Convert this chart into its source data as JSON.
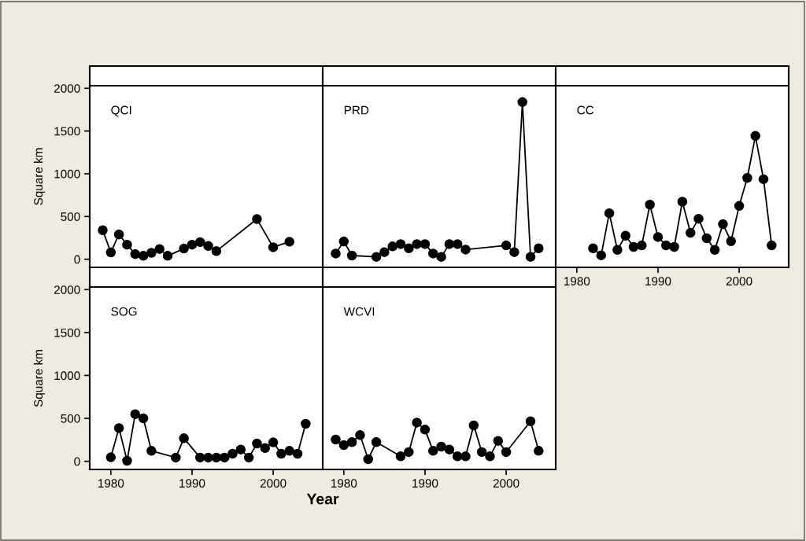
{
  "chart_data": [
    {
      "type": "line",
      "title": "QCI",
      "ylabel": "Square km",
      "xlim": [
        1977.4,
        2006.1
      ],
      "ylim": [
        -95,
        2030
      ],
      "xticks": [
        1980,
        1990,
        2000
      ],
      "yticks": [
        0,
        500,
        1000,
        1500,
        2000
      ],
      "tick_labels": "y",
      "marker": "circle",
      "line_style": "solid",
      "grid": false,
      "series": [
        {
          "color": "#000000",
          "x": [
            1979,
            1980,
            1981,
            1982,
            1983,
            1984,
            1985,
            1986,
            1987,
            1989,
            1990,
            1991,
            1992,
            1993,
            1998,
            2000,
            2002
          ],
          "values": [
            340,
            80,
            290,
            170,
            60,
            40,
            75,
            120,
            40,
            125,
            170,
            200,
            155,
            95,
            470,
            140,
            205
          ]
        }
      ]
    },
    {
      "type": "line",
      "title": "PRD",
      "xlim": [
        1977.4,
        2006.1
      ],
      "ylim": [
        -95,
        2030
      ],
      "xticks": [
        1980,
        1990,
        2000
      ],
      "yticks": [
        0,
        500,
        1000,
        1500,
        2000
      ],
      "tick_labels": false,
      "marker": "circle",
      "line_style": "solid",
      "grid": false,
      "series": [
        {
          "color": "#000000",
          "x": [
            1979,
            1980,
            1981,
            1984,
            1985,
            1986,
            1987,
            1988,
            1989,
            1990,
            1991,
            1992,
            1993,
            1994,
            1995,
            2000,
            2001,
            2002,
            2003,
            2004
          ],
          "values": [
            67,
            208,
            43,
            28,
            83,
            150,
            177,
            128,
            177,
            177,
            67,
            28,
            177,
            177,
            113,
            162,
            83,
            1838,
            28,
            128
          ]
        }
      ]
    },
    {
      "type": "line",
      "title": "CC",
      "xlim": [
        1977.4,
        2006.1
      ],
      "ylim": [
        -95,
        2030
      ],
      "xticks": [
        1980,
        1990,
        2000
      ],
      "yticks": [
        0,
        500,
        1000,
        1500,
        2000
      ],
      "tick_labels": "x",
      "marker": "circle",
      "line_style": "solid",
      "grid": false,
      "series": [
        {
          "color": "#000000",
          "x": [
            1982,
            1983,
            1984,
            1985,
            1986,
            1987,
            1988,
            1989,
            1990,
            1991,
            1992,
            1993,
            1994,
            1995,
            1996,
            1997,
            1998,
            1999,
            2000,
            2001,
            2002,
            2003,
            2004
          ],
          "values": [
            128,
            46,
            538,
            110,
            275,
            144,
            162,
            639,
            260,
            162,
            144,
            673,
            309,
            474,
            245,
            110,
            410,
            211,
            624,
            951,
            1443,
            936,
            162
          ]
        }
      ]
    },
    {
      "type": "line",
      "title": "SOG",
      "ylabel": "Square km",
      "xlabel": "Year",
      "xlim": [
        1977.4,
        2006.1
      ],
      "ylim": [
        -95,
        2030
      ],
      "xticks": [
        1980,
        1990,
        2000
      ],
      "yticks": [
        0,
        500,
        1000,
        1500,
        2000
      ],
      "marker": "circle",
      "line_style": "solid",
      "grid": false,
      "series": [
        {
          "color": "#000000",
          "x": [
            1980,
            1981,
            1982,
            1983,
            1984,
            1985,
            1988,
            1989,
            1991,
            1992,
            1993,
            1994,
            1995,
            1996,
            1997,
            1998,
            1999,
            2000,
            2001,
            2002,
            2003,
            2004
          ],
          "values": [
            46,
            387,
            6,
            549,
            500,
            122,
            43,
            268,
            43,
            43,
            43,
            43,
            88,
            137,
            43,
            207,
            155,
            220,
            88,
            122,
            88,
            436
          ]
        }
      ]
    },
    {
      "type": "line",
      "title": "WCVI",
      "xlim": [
        1977.4,
        2006.1
      ],
      "ylim": [
        -95,
        2030
      ],
      "xticks": [
        1980,
        1990,
        2000
      ],
      "yticks": [
        0,
        500,
        1000,
        1500,
        2000
      ],
      "tick_labels": "x",
      "marker": "circle",
      "line_style": "solid",
      "grid": false,
      "series": [
        {
          "color": "#000000",
          "x": [
            1979,
            1980,
            1981,
            1982,
            1983,
            1984,
            1987,
            1988,
            1989,
            1990,
            1991,
            1992,
            1993,
            1994,
            1995,
            1996,
            1997,
            1998,
            1999,
            2000,
            2003,
            2004
          ],
          "values": [
            253,
            189,
            223,
            305,
            24,
            223,
            58,
            107,
            451,
            369,
            122,
            171,
            137,
            58,
            58,
            418,
            107,
            58,
            238,
            107,
            466,
            122
          ]
        }
      ]
    }
  ]
}
